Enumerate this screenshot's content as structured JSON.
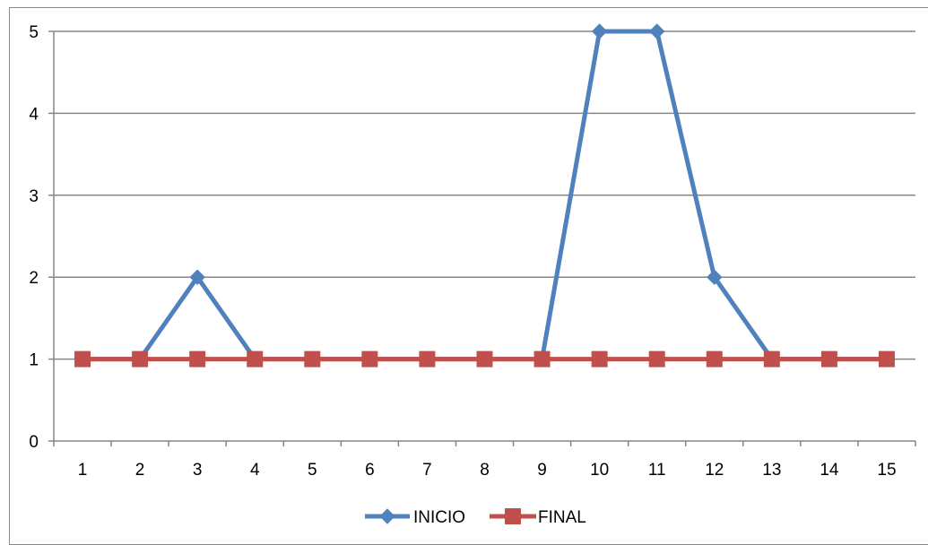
{
  "chart_data": {
    "type": "line",
    "title": "",
    "xlabel": "",
    "ylabel": "",
    "categories": [
      "1",
      "2",
      "3",
      "4",
      "5",
      "6",
      "7",
      "8",
      "9",
      "10",
      "11",
      "12",
      "13",
      "14",
      "15"
    ],
    "ylim": [
      0,
      5
    ],
    "yticks": [
      "0",
      "1",
      "2",
      "3",
      "4",
      "5"
    ],
    "grid": true,
    "legend_position": "bottom",
    "series": [
      {
        "name": "INICIO",
        "values": [
          1,
          1,
          2,
          1,
          1,
          1,
          1,
          1,
          1,
          5,
          5,
          2,
          1,
          1,
          1
        ],
        "color": "#4F81BD",
        "marker": "diamond"
      },
      {
        "name": "FINAL",
        "values": [
          1,
          1,
          1,
          1,
          1,
          1,
          1,
          1,
          1,
          1,
          1,
          1,
          1,
          1,
          1
        ],
        "color": "#C0504D",
        "marker": "square"
      }
    ]
  }
}
